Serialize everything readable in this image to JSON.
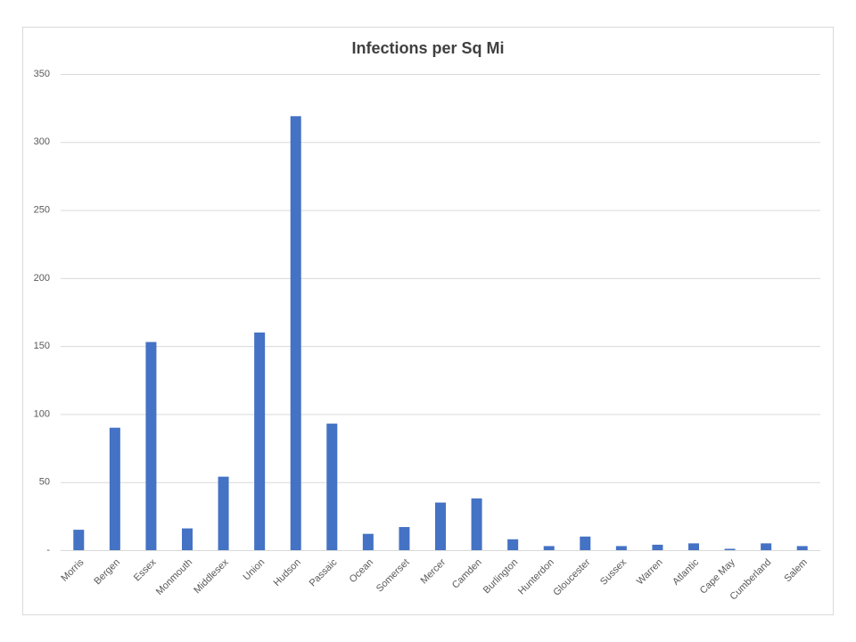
{
  "chart_data": {
    "type": "bar",
    "title": "Infections per Sq Mi",
    "categories": [
      "Morris",
      "Bergen",
      "Essex",
      "Monmouth",
      "Middlesex",
      "Union",
      "Hudson",
      "Passaic",
      "Ocean",
      "Somerset",
      "Mercer",
      "Camden",
      "Burlington",
      "Hunterdon",
      "Gloucester",
      "Sussex",
      "Warren",
      "Atlantic",
      "Cape May",
      "Cumberland",
      "Salem"
    ],
    "values": [
      15,
      90,
      153,
      16,
      54,
      160,
      319,
      93,
      12,
      17,
      35,
      38,
      8,
      3,
      10,
      3,
      4,
      5,
      1,
      5,
      3
    ],
    "color": "#4472c4",
    "ylim": [
      0,
      350
    ],
    "yticks": [
      {
        "value": 0,
        "label": "-"
      },
      50,
      100,
      150,
      200,
      250,
      300,
      350
    ],
    "grid": true
  }
}
